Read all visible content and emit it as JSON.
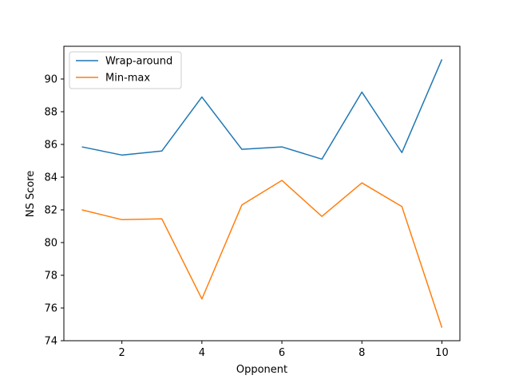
{
  "chart_data": {
    "type": "line",
    "title": "",
    "xlabel": "Opponent",
    "ylabel": "NS Score",
    "x": [
      1,
      2,
      3,
      4,
      5,
      6,
      7,
      8,
      9,
      10
    ],
    "xlim": [
      0.55,
      10.45
    ],
    "ylim": [
      74,
      92
    ],
    "xticks": [
      2,
      4,
      6,
      8,
      10
    ],
    "yticks": [
      74,
      76,
      78,
      80,
      82,
      84,
      86,
      88,
      90
    ],
    "grid": false,
    "legend_position": "top-left",
    "series": [
      {
        "name": "Wrap-around",
        "color": "#1f77b4",
        "values": [
          85.85,
          85.35,
          85.6,
          88.9,
          85.7,
          85.85,
          85.1,
          89.2,
          85.5,
          91.2
        ]
      },
      {
        "name": "Min-max",
        "color": "#ff7f0e",
        "values": [
          82.0,
          81.4,
          81.45,
          76.55,
          82.3,
          83.8,
          81.6,
          83.65,
          82.2,
          74.8
        ]
      }
    ]
  }
}
